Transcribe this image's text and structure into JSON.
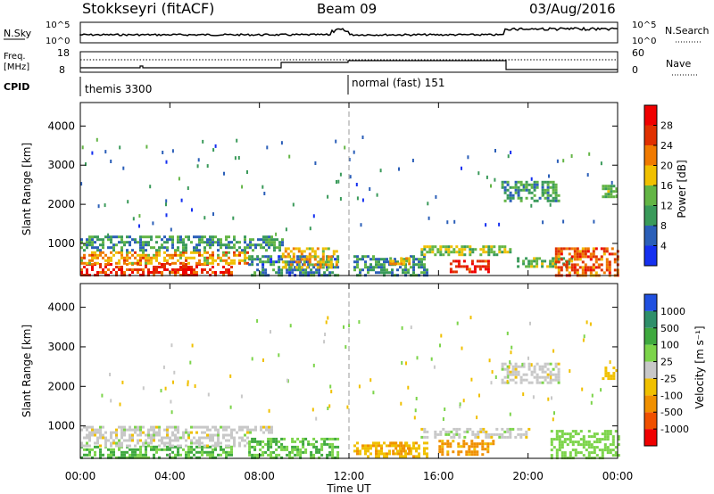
{
  "header": {
    "station": "Stokkseyri (fitACF)",
    "beam": "Beam 09",
    "date": "03/Aug/2016"
  },
  "side_labels": {
    "nsky": "N.Sky",
    "freq_line1": "Freq.",
    "freq_line2": "[MHz]",
    "cpid": "CPID",
    "nsearch": "N.Search",
    "nave": "Nave"
  },
  "cpid_labels": [
    "themis 3300",
    "normal (fast) 151"
  ],
  "noise_axis": {
    "left_top": "10^5",
    "left_bottom": "10^0",
    "right_top": "10^5",
    "right_bottom": "10^0"
  },
  "freq_axis": {
    "left_ticks": [
      "18",
      "8"
    ],
    "right_ticks": [
      "60",
      "0"
    ]
  },
  "x_axis": {
    "ticks": [
      "00:00",
      "04:00",
      "08:00",
      "12:00",
      "16:00",
      "20:00",
      "00:00"
    ],
    "label": "Time UT"
  },
  "y_axis": {
    "label": "Slant Range [km]",
    "ticks": [
      "1000",
      "2000",
      "3000",
      "4000"
    ]
  },
  "colorbars": {
    "power": {
      "label": "Power [dB]",
      "ticks": [
        "4",
        "8",
        "12",
        "16",
        "20",
        "24",
        "28"
      ],
      "colors": [
        "#1530f0",
        "#2b5fb8",
        "#3a9a5a",
        "#63b545",
        "#f0c000",
        "#f07a00",
        "#e03000",
        "#f00000"
      ]
    },
    "velocity": {
      "label": "Velocity [m s⁻¹]",
      "ticks": [
        "1000",
        "500",
        "100",
        "25",
        "-25",
        "-100",
        "-500",
        "-1000"
      ],
      "colors": [
        "#2050e0",
        "#2f8f6a",
        "#3fa93f",
        "#7cd44a",
        "#c8c8c8",
        "#f0c000",
        "#f09000",
        "#f05000",
        "#f00000"
      ]
    }
  },
  "chart_data": {
    "type": "heatmap",
    "x_range_hours": [
      0,
      24
    ],
    "y_range_km": [
      180,
      4600
    ],
    "power_panel": {
      "regions": [
        {
          "t0": 0.0,
          "t1": 6.8,
          "r0": 200,
          "r1": 500,
          "power_db": 27
        },
        {
          "t0": 0.0,
          "t1": 7.5,
          "r0": 500,
          "r1": 800,
          "power_db": 20
        },
        {
          "t0": 0.0,
          "t1": 9.0,
          "r0": 800,
          "r1": 1200,
          "power_db": 10
        },
        {
          "t0": 7.5,
          "t1": 11.5,
          "r0": 200,
          "r1": 700,
          "power_db": 8
        },
        {
          "t0": 9.0,
          "t1": 11.5,
          "r0": 400,
          "r1": 900,
          "power_db": 18
        },
        {
          "t0": 12.2,
          "t1": 15.5,
          "r0": 200,
          "r1": 700,
          "power_db": 9
        },
        {
          "t0": 13.8,
          "t1": 14.7,
          "r0": 450,
          "r1": 650,
          "power_db": 19
        },
        {
          "t0": 16.5,
          "t1": 18.2,
          "r0": 280,
          "r1": 580,
          "power_db": 28
        },
        {
          "t0": 15.2,
          "t1": 19.2,
          "r0": 700,
          "r1": 950,
          "power_db": 14
        },
        {
          "t0": 19.5,
          "t1": 22.0,
          "r0": 400,
          "r1": 650,
          "power_db": 13
        },
        {
          "t0": 21.2,
          "t1": 24.0,
          "r0": 200,
          "r1": 900,
          "power_db": 24
        },
        {
          "t0": 18.8,
          "t1": 21.4,
          "r0": 2100,
          "r1": 2600,
          "power_db": 10
        },
        {
          "t0": 23.3,
          "t1": 23.9,
          "r0": 2200,
          "r1": 2500,
          "power_db": 13
        }
      ]
    },
    "velocity_panel": {
      "regions": [
        {
          "t0": 0.0,
          "t1": 6.8,
          "r0": 200,
          "r1": 500,
          "velocity_ms": 110
        },
        {
          "t0": 0.0,
          "t1": 7.5,
          "r0": 500,
          "r1": 800,
          "velocity_ms": 0
        },
        {
          "t0": 0.0,
          "t1": 8.5,
          "r0": 800,
          "r1": 1000,
          "velocity_ms": 0
        },
        {
          "t0": 7.5,
          "t1": 11.5,
          "r0": 200,
          "r1": 700,
          "velocity_ms": 90
        },
        {
          "t0": 12.2,
          "t1": 15.5,
          "r0": 200,
          "r1": 600,
          "velocity_ms": -80
        },
        {
          "t0": 13.8,
          "t1": 14.7,
          "r0": 300,
          "r1": 600,
          "velocity_ms": -150
        },
        {
          "t0": 16.0,
          "t1": 18.5,
          "r0": 250,
          "r1": 650,
          "velocity_ms": -150
        },
        {
          "t0": 15.2,
          "t1": 20.0,
          "r0": 700,
          "r1": 950,
          "velocity_ms": 0
        },
        {
          "t0": 21.0,
          "t1": 24.0,
          "r0": 200,
          "r1": 900,
          "velocity_ms": 60
        },
        {
          "t0": 18.8,
          "t1": 21.4,
          "r0": 2100,
          "r1": 2600,
          "velocity_ms": 0
        },
        {
          "t0": 23.3,
          "t1": 23.9,
          "r0": 2200,
          "r1": 2500,
          "velocity_ms": -60
        }
      ]
    },
    "cpid_switch_hour": 12.0
  }
}
